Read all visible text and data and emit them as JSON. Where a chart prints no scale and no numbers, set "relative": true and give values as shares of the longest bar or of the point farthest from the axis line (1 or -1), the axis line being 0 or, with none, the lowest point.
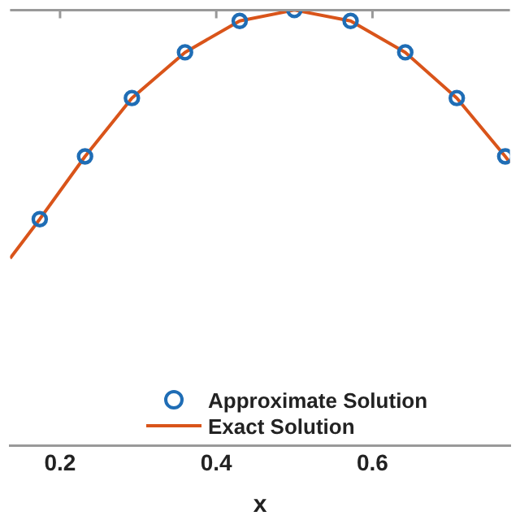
{
  "chart_data": {
    "type": "line",
    "xlabel": "x",
    "relative": true,
    "xlim": [
      0.136,
      0.776
    ],
    "xticks": [
      0.2,
      0.4,
      0.6
    ],
    "legend": "bottom",
    "series": [
      {
        "name": "Approximate Solution",
        "type": "scatter",
        "color": "#1f6db5",
        "marker": "circle",
        "x": [
          0.174,
          0.232,
          0.292,
          0.36,
          0.43,
          0.5,
          0.572,
          0.642,
          0.708,
          0.77
        ],
        "values": [
          0.52,
          0.664,
          0.798,
          0.903,
          0.975,
          1,
          0.975,
          0.903,
          0.798,
          0.664
        ]
      },
      {
        "name": "Exact Solution",
        "type": "line",
        "color": "#d9541a",
        "line_style": "solid",
        "marker": "none",
        "x": [
          0.136,
          0.174,
          0.232,
          0.292,
          0.36,
          0.43,
          0.5,
          0.572,
          0.642,
          0.708,
          0.77,
          0.776
        ],
        "values": [
          0.43,
          0.52,
          0.664,
          0.798,
          0.903,
          0.975,
          1,
          0.975,
          0.903,
          0.798,
          0.664,
          0.65
        ]
      }
    ]
  }
}
